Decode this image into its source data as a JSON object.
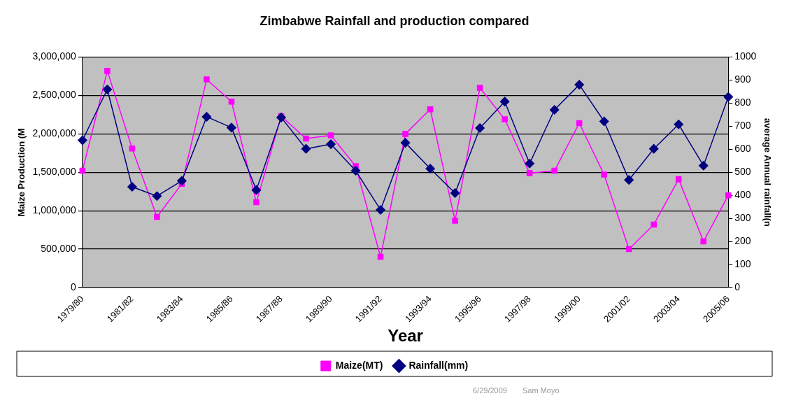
{
  "chart_data": {
    "type": "line",
    "title": "Zimbabwe Rainfall and production compared",
    "xlabel": "Year",
    "ylabel": "Maize Production (M",
    "y2label": "average Annual rainfall(n",
    "categories": [
      "1979/80",
      null,
      "1981/82",
      null,
      "1983/84",
      null,
      "1985/86",
      null,
      "1987/88",
      null,
      "1989/90",
      null,
      "1991/92",
      null,
      "1993/94",
      null,
      "1995/96",
      null,
      "1997/98",
      null,
      "1999/00",
      null,
      "2001/02",
      null,
      "2003/04",
      null,
      "2005/06"
    ],
    "series": [
      {
        "name": "Maize(MT)",
        "color": "#ff00ff",
        "marker": "square",
        "values": [
          1520000,
          2820000,
          1810000,
          920000,
          1350000,
          2710000,
          2420000,
          1110000,
          2230000,
          1940000,
          1980000,
          1580000,
          400000,
          2000000,
          2320000,
          870000,
          2600000,
          2190000,
          1490000,
          1520000,
          2140000,
          1470000,
          500000,
          820000,
          1410000,
          600000,
          1200000
        ]
      },
      {
        "name": "Rainfall(mm)",
        "color": "#000080",
        "marker": "diamond",
        "axis": "y2",
        "values": [
          639,
          860,
          437,
          397,
          463,
          741,
          694,
          423,
          738,
          602,
          622,
          507,
          337,
          628,
          516,
          410,
          692,
          807,
          538,
          771,
          880,
          721,
          467,
          602,
          708,
          529,
          827
        ]
      }
    ],
    "ylim": [
      0,
      3000000
    ],
    "yticks": [
      0,
      {
        "value": 500000,
        "label": "500,000"
      },
      {
        "value": 1000000,
        "label": "1,000,000"
      },
      {
        "value": 1500000,
        "label": "1,500,000"
      },
      {
        "value": 2000000,
        "label": "2,000,000"
      },
      {
        "value": 2500000,
        "label": "2,500,000"
      },
      {
        "value": 3000000,
        "label": "3,000,000"
      }
    ],
    "y2lim": [
      0,
      1000
    ],
    "y2ticks": [
      0,
      100,
      200,
      300,
      400,
      500,
      600,
      700,
      800,
      900,
      1000
    ],
    "grid": "y",
    "legend": "bottom",
    "annotations": [
      "6/29/2009",
      "Sam Moyo"
    ]
  }
}
